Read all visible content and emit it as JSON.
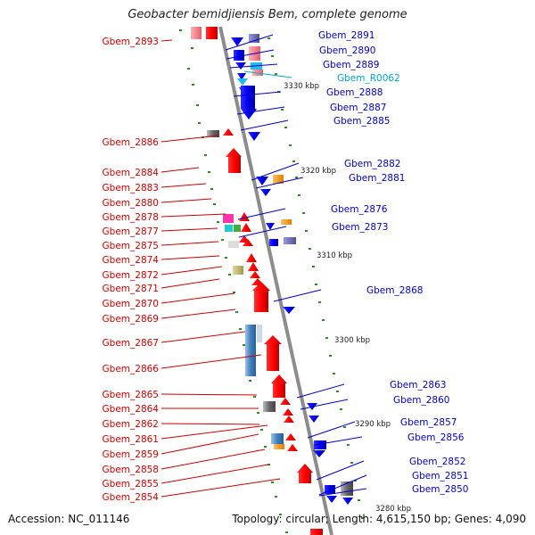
{
  "title": "Geobacter bemidjiensis Bem, complete genome",
  "footer": {
    "accession": "Accession: NC_011146",
    "summary": "Topology: circular; Length: 4,615,150 bp; Genes: 4,090"
  },
  "colors": {
    "backbone": "#8c8c8c",
    "left_label": "#cc0000",
    "right_label": "#0000cc",
    "rna_label": "#00aacc",
    "tick": "#2e8b22"
  },
  "kbp_marks": [
    "3330 kbp",
    "3320 kbp",
    "3310 kbp",
    "3300 kbp",
    "3290 kbp",
    "3280 kbp"
  ],
  "left_labels": [
    "Gbem_2893",
    "Gbem_2886",
    "Gbem_2884",
    "Gbem_2883",
    "Gbem_2880",
    "Gbem_2878",
    "Gbem_2877",
    "Gbem_2875",
    "Gbem_2874",
    "Gbem_2872",
    "Gbem_2871",
    "Gbem_2870",
    "Gbem_2869",
    "Gbem_2867",
    "Gbem_2866",
    "Gbem_2865",
    "Gbem_2864",
    "Gbem_2862",
    "Gbem_2861",
    "Gbem_2859",
    "Gbem_2858",
    "Gbem_2855",
    "Gbem_2854"
  ],
  "right_labels": [
    "Gbem_2891",
    "Gbem_2890",
    "Gbem_2889",
    "Gbem_R0062",
    "Gbem_2888",
    "Gbem_2887",
    "Gbem_2885",
    "Gbem_2882",
    "Gbem_2881",
    "Gbem_2876",
    "Gbem_2873",
    "Gbem_2868",
    "Gbem_2863",
    "Gbem_2860",
    "Gbem_2857",
    "Gbem_2856",
    "Gbem_2852",
    "Gbem_2851",
    "Gbem_2850"
  ],
  "rna_genes": [
    "Gbem_R0062"
  ]
}
